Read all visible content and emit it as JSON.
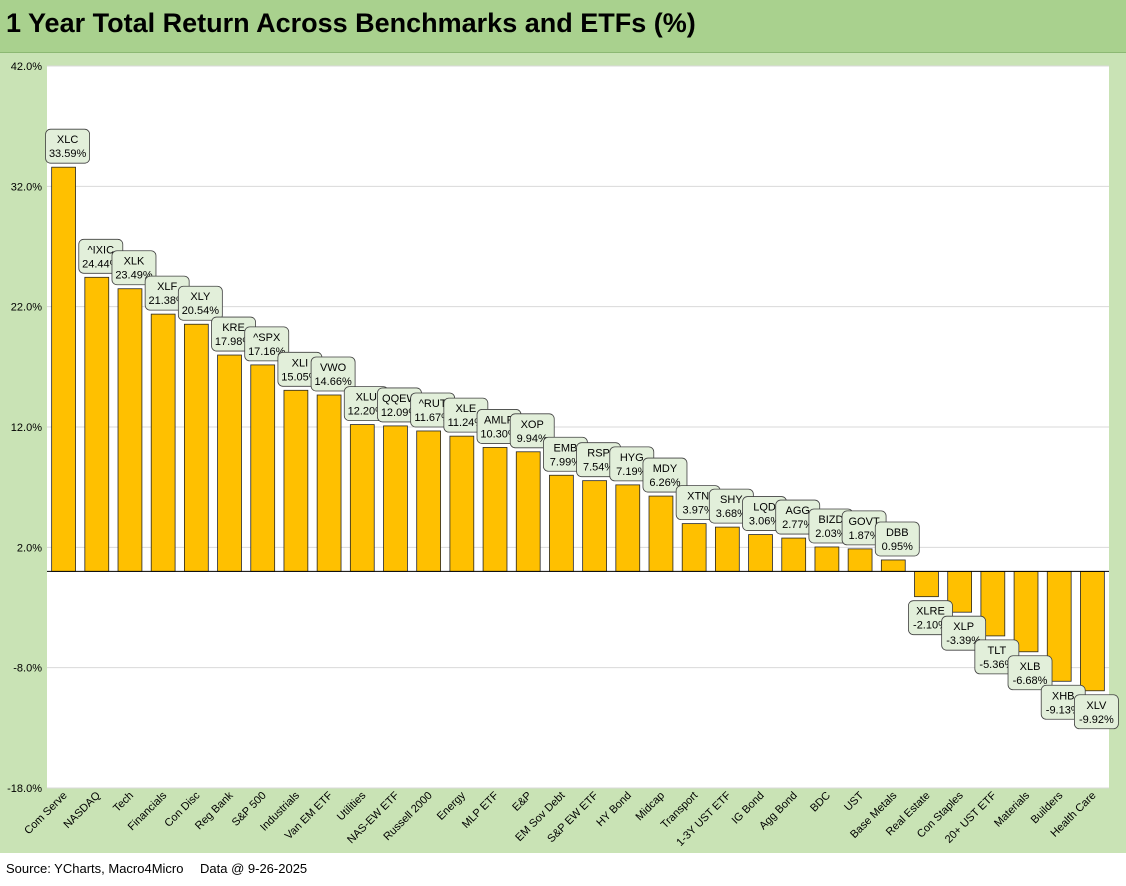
{
  "title": "1 Year Total Return Across Benchmarks and ETFs (%)",
  "footer": {
    "source": "Source: YCharts, Macro4Micro",
    "data_date": "Data @ 9-26-2025"
  },
  "colors": {
    "bar": "#ffc000",
    "bar_edge": "#262626",
    "plot_bg": "#ffffff",
    "frame_bg": "#c9e3b5",
    "title_bg": "#a9d18e",
    "label_bg": "#e2efda"
  },
  "chart_data": {
    "type": "bar",
    "grid": true,
    "ylim": [
      -18,
      42
    ],
    "yticks": [
      42,
      32,
      22,
      12,
      2,
      -8,
      -18
    ],
    "ytick_labels": [
      "42.0%",
      "32.0%",
      "22.0%",
      "12.0%",
      "2.0%",
      "-8.0%",
      "-18.0%"
    ],
    "categories": [
      "Com Serve",
      "NASDAQ",
      "Tech",
      "Financials",
      "Con Disc",
      "Reg Bank",
      "S&P 500",
      "Industrials",
      "Van EM ETF",
      "Utilities",
      "NAS-EW ETF",
      "Russell 2000",
      "Energy",
      "MLP ETF",
      "E&P",
      "EM Sov Debt",
      "S&P EW ETF",
      "HY Bond",
      "Midcap",
      "Transport",
      "1-3Y UST ETF",
      "IG Bond",
      "Agg Bond",
      "BDC",
      "UST",
      "Base Metals",
      "Real Estate",
      "Con Staples",
      "20+ UST ETF",
      "Materials",
      "Builders",
      "Health Care"
    ],
    "tickers": [
      "XLC",
      "^IXIC",
      "XLK",
      "XLF",
      "XLY",
      "KRE",
      "^SPX",
      "XLI",
      "VWO",
      "XLU",
      "QQEW",
      "^RUT",
      "XLE",
      "AMLP",
      "XOP",
      "EMB",
      "RSP",
      "HYG",
      "MDY",
      "XTN",
      "SHY",
      "LQD",
      "AGG",
      "BIZD",
      "GOVT",
      "DBB",
      "XLRE",
      "XLP",
      "TLT",
      "XLB",
      "XHB",
      "XLV"
    ],
    "values": [
      33.59,
      24.44,
      23.49,
      21.38,
      20.54,
      17.98,
      17.16,
      15.05,
      14.66,
      12.2,
      12.09,
      11.67,
      11.24,
      10.3,
      9.94,
      7.99,
      7.54,
      7.19,
      6.26,
      3.97,
      3.68,
      3.06,
      2.77,
      2.03,
      1.87,
      0.95,
      -2.1,
      -3.39,
      -5.36,
      -6.68,
      -9.13,
      -9.92
    ],
    "value_labels": [
      "33.59%",
      "24.44%",
      "23.49%",
      "21.38%",
      "20.54%",
      "17.98%",
      "17.16%",
      "15.05%",
      "14.66%",
      "12.20%",
      "12.09%",
      "11.67%",
      "11.24%",
      "10.30%",
      "9.94%",
      "7.99%",
      "7.54%",
      "7.19%",
      "6.26%",
      "3.97%",
      "3.68%",
      "3.06%",
      "2.77%",
      "2.03%",
      "1.87%",
      "0.95%",
      "-2.10%",
      "-3.39%",
      "-5.36%",
      "-6.68%",
      "-9.13%",
      "-9.92%"
    ]
  }
}
